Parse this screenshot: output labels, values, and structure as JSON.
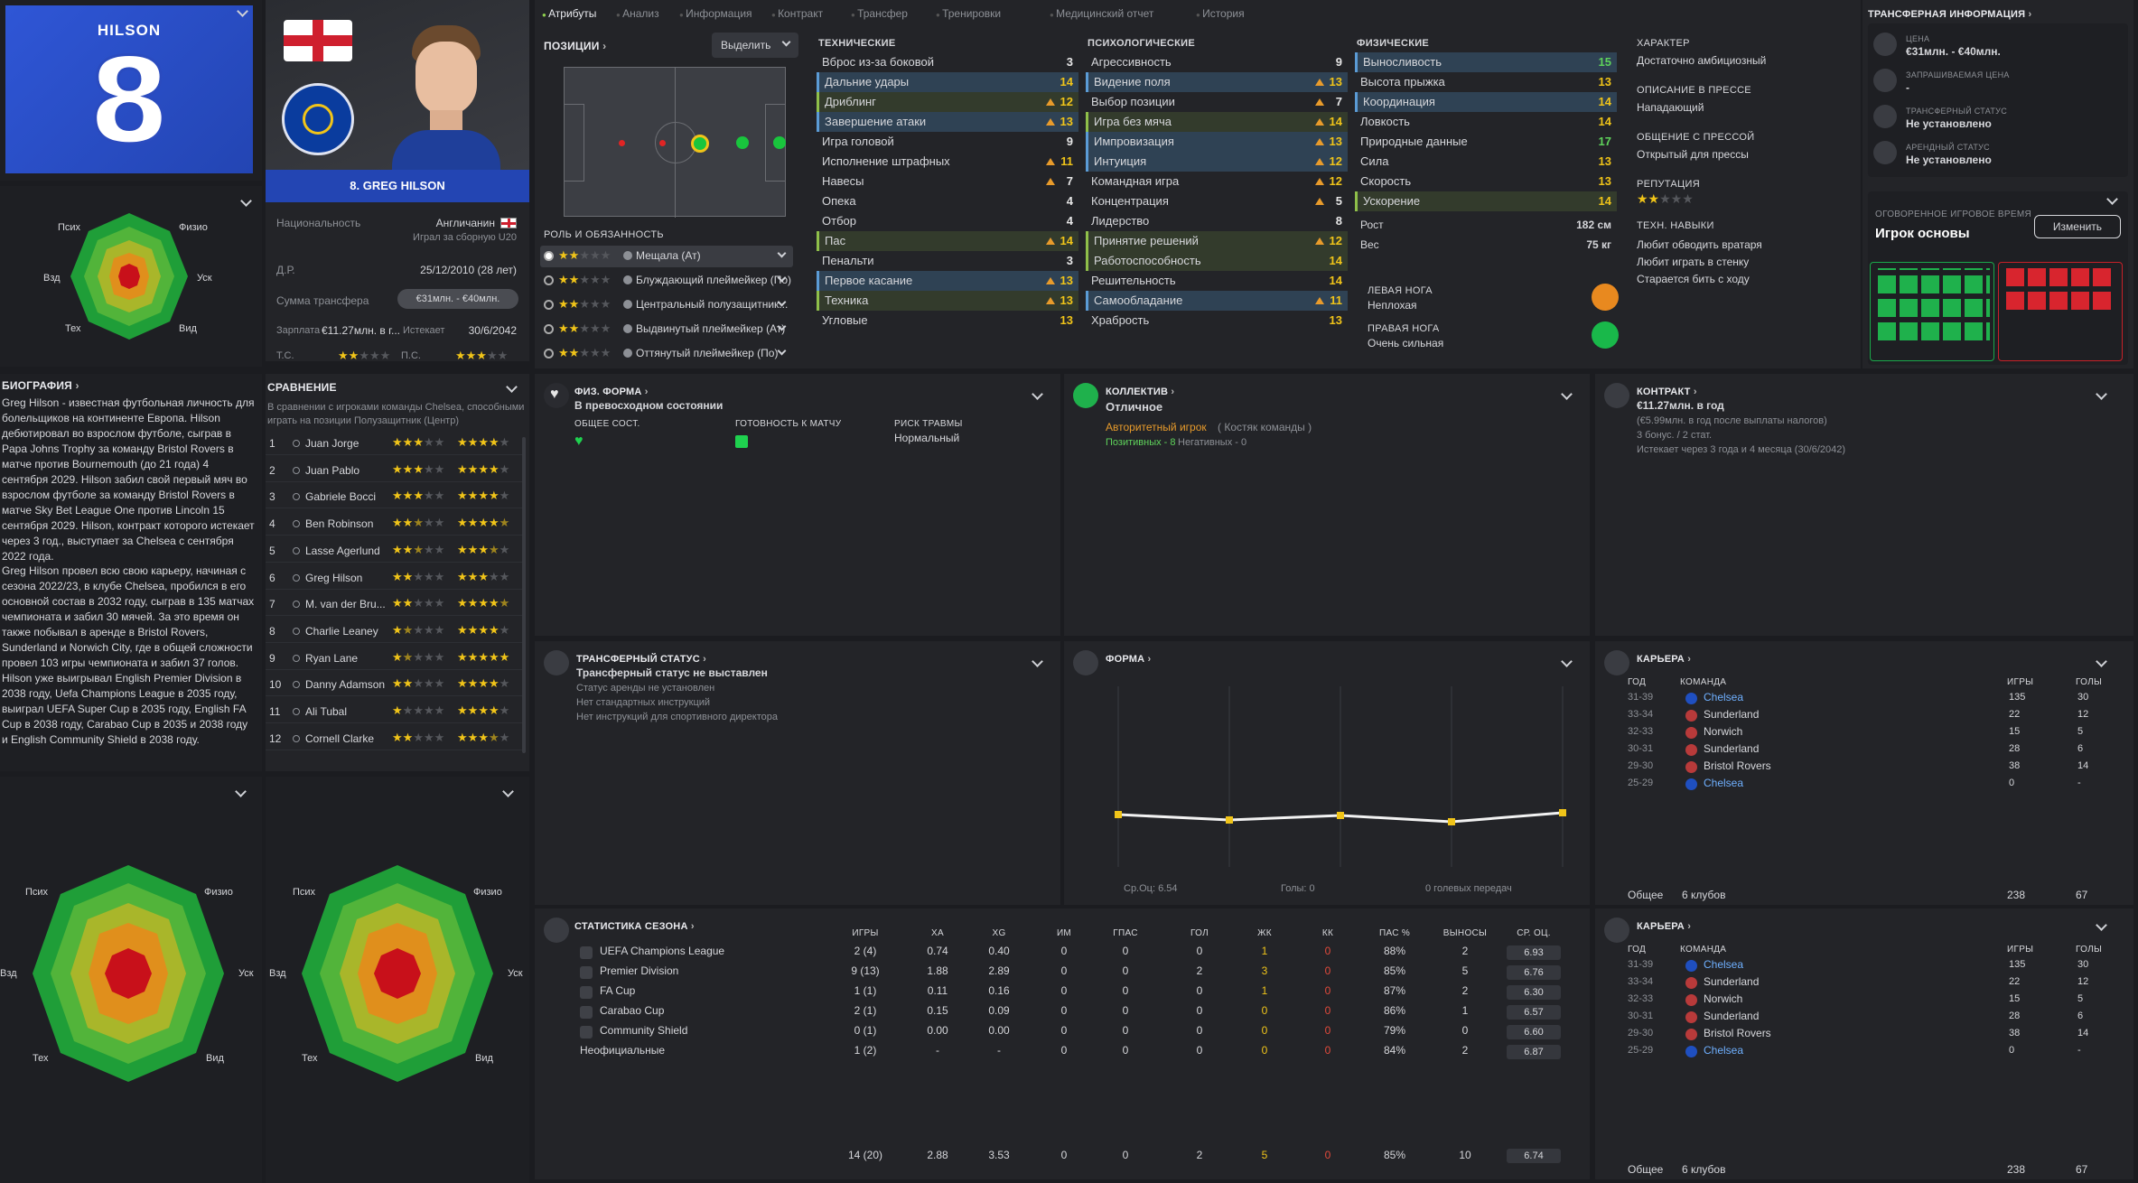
{
  "player": {
    "short_name": "HILSON",
    "number": "8",
    "full_label": "8. GREG HILSON",
    "nationality_label": "Национальность",
    "nationality": "Англичанин",
    "national_team": "Играл за сборную U20",
    "dob_label": "Д.Р.",
    "dob": "25/12/2010 (28 лет)",
    "transfer_sum_label": "Сумма трансфера",
    "transfer_sum": "€31млн. - €40млн.",
    "salary_label": "Зарплата",
    "salary": "€11.27млн. в г...",
    "expires_label": "Истекает",
    "expires": "30/6/2042",
    "ts_label": "Т.С.",
    "ps_label": "П.С.",
    "club_colors": {
      "primary": "#2b4fc9",
      "secondary": "#ffffff"
    }
  },
  "radar_labels": {
    "psych": "Псих",
    "physio": "Физио",
    "vzd": "Взд",
    "usk": "Уск",
    "tekh": "Тех",
    "vid": "Вид"
  },
  "tabs": [
    {
      "label": "Атрибуты",
      "active": true
    },
    {
      "label": "Анализ"
    },
    {
      "label": "Информация"
    },
    {
      "label": "Контракт"
    },
    {
      "label": "Трансфер"
    },
    {
      "label": "Тренировки"
    },
    {
      "label": "Медицинский отчет"
    },
    {
      "label": "История"
    }
  ],
  "positions": {
    "title": "ПОЗИЦИИ",
    "select_label": "Выделить",
    "roles_title": "РОЛЬ И ОБЯЗАННОСТЬ",
    "roles": [
      {
        "name": "Мещала (Ат)",
        "stars": 2
      },
      {
        "name": "Блуждающий плеймейкер (По)",
        "stars": 2
      },
      {
        "name": "Центральный полузащитник...",
        "stars": 2
      },
      {
        "name": "Выдвинутый плеймейкер (Ат)",
        "stars": 2
      },
      {
        "name": "Оттянутый плеймейкер (По)",
        "stars": 2
      }
    ]
  },
  "technical": {
    "title": "ТЕХНИЧЕСКИЕ",
    "items": [
      {
        "name": "Вброс из-за боковой",
        "value": "3"
      },
      {
        "name": "Дальние удары",
        "value": "14",
        "hl": "b"
      },
      {
        "name": "Дриблинг",
        "value": "12",
        "hl": "g",
        "up": true
      },
      {
        "name": "Завершение атаки",
        "value": "13",
        "hl": "b",
        "up": true
      },
      {
        "name": "Игра головой",
        "value": "9"
      },
      {
        "name": "Исполнение штрафных",
        "value": "11",
        "up": true
      },
      {
        "name": "Навесы",
        "value": "7",
        "up": true
      },
      {
        "name": "Опека",
        "value": "4"
      },
      {
        "name": "Отбор",
        "value": "4"
      },
      {
        "name": "Пас",
        "value": "14",
        "hl": "g",
        "up": true
      },
      {
        "name": "Пенальти",
        "value": "3"
      },
      {
        "name": "Первое касание",
        "value": "13",
        "hl": "b",
        "up": true
      },
      {
        "name": "Техника",
        "value": "13",
        "hl": "g",
        "up": true
      },
      {
        "name": "Угловые",
        "value": "13"
      }
    ]
  },
  "mental": {
    "title": "ПСИХОЛОГИЧЕСКИЕ",
    "items": [
      {
        "name": "Агрессивность",
        "value": "9"
      },
      {
        "name": "Видение поля",
        "value": "13",
        "hl": "b",
        "up": true
      },
      {
        "name": "Выбор позиции",
        "value": "7",
        "up": true
      },
      {
        "name": "Игра без мяча",
        "value": "14",
        "hl": "g",
        "up": true
      },
      {
        "name": "Импровизация",
        "value": "13",
        "hl": "b",
        "up": true
      },
      {
        "name": "Интуиция",
        "value": "12",
        "hl": "b",
        "up": true
      },
      {
        "name": "Командная игра",
        "value": "12",
        "up": true
      },
      {
        "name": "Концентрация",
        "value": "5",
        "up": true
      },
      {
        "name": "Лидерство",
        "value": "8"
      },
      {
        "name": "Принятие решений",
        "value": "12",
        "hl": "g",
        "up": true
      },
      {
        "name": "Работоспособность",
        "value": "14",
        "hl": "g"
      },
      {
        "name": "Решительность",
        "value": "14"
      },
      {
        "name": "Самообладание",
        "value": "11",
        "hl": "b",
        "up": true
      },
      {
        "name": "Храбрость",
        "value": "13"
      }
    ]
  },
  "physical": {
    "title": "ФИЗИЧЕСКИЕ",
    "items": [
      {
        "name": "Выносливость",
        "value": "15",
        "hl": "b"
      },
      {
        "name": "Высота прыжка",
        "value": "13"
      },
      {
        "name": "Координация",
        "value": "14",
        "hl": "b"
      },
      {
        "name": "Ловкость",
        "value": "14"
      },
      {
        "name": "Природные данные",
        "value": "17"
      },
      {
        "name": "Сила",
        "value": "13"
      },
      {
        "name": "Скорость",
        "value": "13"
      },
      {
        "name": "Ускорение",
        "value": "14",
        "hl": "g"
      }
    ],
    "height_label": "Рост",
    "height": "182 см",
    "weight_label": "Вес",
    "weight": "75 кг",
    "left_foot_label": "ЛЕВАЯ НОГА",
    "left_foot": "Неплохая",
    "right_foot_label": "ПРАВАЯ НОГА",
    "right_foot": "Очень сильная"
  },
  "character": {
    "title": "ХАРАКТЕР",
    "value": "Достаточно амбициозный",
    "press_title": "ОПИСАНИЕ В ПРЕССЕ",
    "press": "Нападающий",
    "media_title": "ОБЩЕНИЕ С ПРЕССОЙ",
    "media": "Открытый для прессы",
    "rep_title": "РЕПУТАЦИЯ",
    "rep_stars": 2,
    "skills_title": "ТЕХН. НАВЫКИ",
    "skills": [
      "Любит обводить вратаря",
      "Любит играть в стенку",
      "Старается бить с ходу"
    ]
  },
  "transfer_info": {
    "title": "ТРАНСФЕРНАЯ ИНФОРМАЦИЯ",
    "items": [
      {
        "label": "ЦЕНА",
        "value": "€31млн. - €40млн."
      },
      {
        "label": "ЗАПРАШИВАЕМАЯ ЦЕНА",
        "value": "-"
      },
      {
        "label": "ТРАНСФЕРНЫЙ СТАТУС",
        "value": "Не установлено"
      },
      {
        "label": "АРЕНДНЫЙ СТАТУС",
        "value": "Не установлено"
      }
    ],
    "playtime_label": "ОГОВОРЕННОЕ ИГРОВОЕ ВРЕМЯ",
    "playtime": "Игрок основы",
    "change_button": "Изменить"
  },
  "biography": {
    "title": "БИОГРАФИЯ",
    "p1": "Greg Hilson - известная футбольная личность для болельщиков на континенте Европа. Hilson дебютировал во взрослом футболе, сыграв в Papa Johns Trophy за команду Bristol Rovers в матче против Bournemouth (до 21 года) 4 сентября 2029. Hilson забил свой первый мяч во взрослом футболе за команду Bristol Rovers в матче Sky Bet League One против Lincoln 15 сентября 2029. Hilson, контракт которого истекает через 3 год., выступает за Chelsea с сентября 2022 года.",
    "p2": "Greg Hilson провел всю свою карьеру, начиная с сезона 2022/23, в клубе Chelsea, пробился в его основной состав в 2032 году, сыграв в 135 матчах чемпионата и забил 30 мячей. За это время он также побывал в аренде в Bristol Rovers, Sunderland и Norwich City, где в общей сложности провел 103 игры чемпионата и забил 37 голов. Hilson уже выигрывал English Premier Division в 2038 году, Uefa Champions League в 2035 году, выиграл UEFA Super Cup в 2035 году, English FA Cup в 2038 году, Carabao Cup в 2035 и 2038 году и English Community Shield в 2038 году."
  },
  "comparison": {
    "title": "СРАВНЕНИЕ",
    "desc": "В сравнении с игроками команды Chelsea, способными играть на позиции Полузащитник (Центр)",
    "rows": [
      {
        "rank": "1",
        "name": "Juan Jorge",
        "a": 3,
        "b": 4
      },
      {
        "rank": "2",
        "name": "Juan Pablo",
        "a": 3,
        "b": 4
      },
      {
        "rank": "3",
        "name": "Gabriele Bocci",
        "a": 3,
        "b": 4
      },
      {
        "rank": "4",
        "name": "Ben Robinson",
        "a": 2.5,
        "b": 4.5
      },
      {
        "rank": "5",
        "name": "Lasse Agerlund",
        "a": 2.5,
        "b": 3.5
      },
      {
        "rank": "6",
        "name": "Greg Hilson",
        "a": 2,
        "b": 3
      },
      {
        "rank": "7",
        "name": "M. van der Bru...",
        "a": 2,
        "b": 4.5
      },
      {
        "rank": "8",
        "name": "Charlie Leaney",
        "a": 1.5,
        "b": 4
      },
      {
        "rank": "9",
        "name": "Ryan Lane",
        "a": 1.5,
        "b": 5
      },
      {
        "rank": "10",
        "name": "Danny Adamson",
        "a": 2,
        "b": 4
      },
      {
        "rank": "11",
        "name": "Ali Tubal",
        "a": 1,
        "b": 4
      },
      {
        "rank": "12",
        "name": "Cornell Clarke",
        "a": 2,
        "b": 3.5
      }
    ]
  },
  "fitness": {
    "title": "ФИЗ. ФОРМА",
    "status": "В превосходном состоянии",
    "overall": "ОБЩЕЕ СОСТ.",
    "readiness": "ГОТОВНОСТЬ К МАТЧУ",
    "injury_risk": "РИСК ТРАВМЫ",
    "injury_value": "Нормальный"
  },
  "team": {
    "title": "КОЛЛЕКТИВ",
    "status": "Отличное",
    "role": "Авторитетный игрок",
    "role_extra": "( Костяк команды )",
    "positive": "Позитивных - 8",
    "negative": "Негативных - 0"
  },
  "contract": {
    "title": "КОНТРАКТ",
    "salary": "€11.27млн. в год",
    "net": "(€5.99млн. в год после выплаты налогов)",
    "bonus": "3 бонус. / 2 стат.",
    "expiry": "Истекает через 3 года и 4 месяца (30/6/2042)"
  },
  "transfer_status": {
    "title": "ТРАНСФЕРНЫЙ СТАТУС",
    "status": "Трансферный статус не выставлен",
    "lines": [
      "Статус аренды не установлен",
      "Нет стандартных инструкций",
      "Нет инструкций для спортивного директора"
    ]
  },
  "form": {
    "title": "ФОРМА",
    "avg_label": "Ср.Оц: 6.54",
    "goals_label": "Голы: 0",
    "assists_label": "0 голевых передач"
  },
  "chart_data": {
    "type": "line",
    "series": [
      {
        "values": [
          6.58,
          6.52,
          6.57,
          6.5,
          6.6
        ]
      }
    ]
  },
  "career": {
    "title": "КАРЬЕРА",
    "headers": {
      "year": "ГОД",
      "team": "КОМАНДА",
      "games": "ИГРЫ",
      "goals": "ГОЛЫ"
    },
    "rows": [
      {
        "year": "31-39",
        "team": "Chelsea",
        "games": "135",
        "goals": "30",
        "link": true
      },
      {
        "year": "33-34",
        "team": "Sunderland",
        "games": "22",
        "goals": "12"
      },
      {
        "year": "32-33",
        "team": "Norwich",
        "games": "15",
        "goals": "5"
      },
      {
        "year": "30-31",
        "team": "Sunderland",
        "games": "28",
        "goals": "6"
      },
      {
        "year": "29-30",
        "team": "Bristol Rovers",
        "games": "38",
        "goals": "14"
      },
      {
        "year": "25-29",
        "team": "Chelsea",
        "games": "0",
        "goals": "-",
        "link": true
      }
    ],
    "total_label": "Общее",
    "total_clubs": "6 клубов",
    "total_games": "238",
    "total_goals": "67"
  },
  "season_stats": {
    "title": "СТАТИСТИКА СЕЗОНА",
    "headers": [
      "ИГРЫ",
      "XA",
      "XG",
      "ИМ",
      "ГПАС",
      "ГОЛ",
      "ЖК",
      "КК",
      "ПАС %",
      "ВЫНОСЫ",
      "СР. ОЦ."
    ],
    "rows": [
      {
        "comp": "UEFA Champions League",
        "v": [
          "2 (4)",
          "0.74",
          "0.40",
          "0",
          "0",
          "0",
          "1",
          "0",
          "88%",
          "2",
          "6.93"
        ]
      },
      {
        "comp": "Premier Division",
        "v": [
          "9 (13)",
          "1.88",
          "2.89",
          "0",
          "0",
          "2",
          "3",
          "0",
          "85%",
          "5",
          "6.76"
        ]
      },
      {
        "comp": "FA Cup",
        "v": [
          "1 (1)",
          "0.11",
          "0.16",
          "0",
          "0",
          "0",
          "1",
          "0",
          "87%",
          "2",
          "6.30"
        ]
      },
      {
        "comp": "Carabao Cup",
        "v": [
          "2 (1)",
          "0.15",
          "0.09",
          "0",
          "0",
          "0",
          "0",
          "0",
          "86%",
          "1",
          "6.57"
        ]
      },
      {
        "comp": "Community Shield",
        "v": [
          "0 (1)",
          "0.00",
          "0.00",
          "0",
          "0",
          "0",
          "0",
          "0",
          "79%",
          "0",
          "6.60"
        ]
      },
      {
        "comp": "Неофициальные",
        "v": [
          "1 (2)",
          "-",
          "-",
          "0",
          "0",
          "0",
          "0",
          "0",
          "84%",
          "2",
          "6.87"
        ]
      }
    ],
    "totals": [
      "14 (20)",
      "2.88",
      "3.53",
      "0",
      "0",
      "2",
      "5",
      "0",
      "85%",
      "10",
      "6.74"
    ]
  }
}
